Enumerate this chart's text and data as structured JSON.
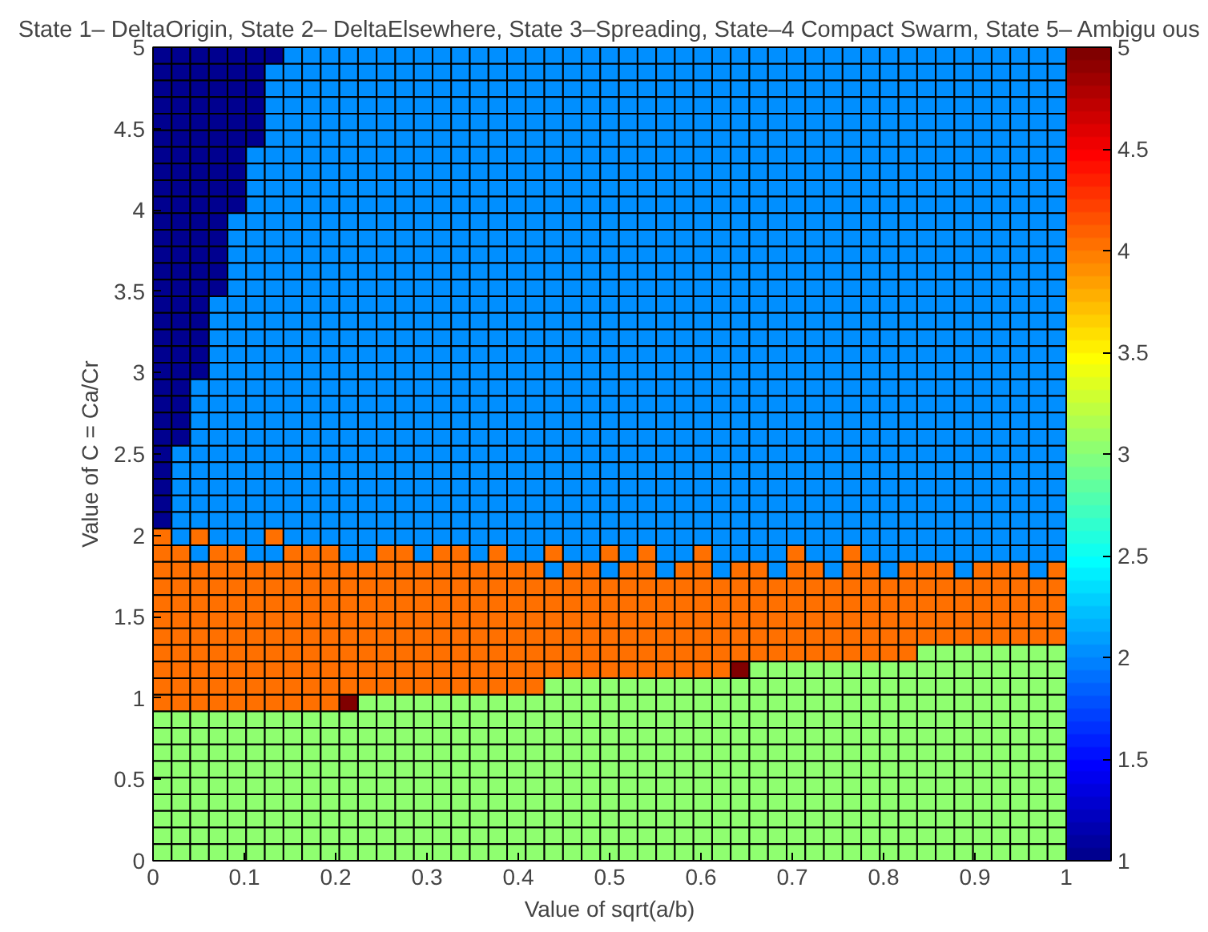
{
  "chart_data": {
    "type": "heatmap",
    "title": "State 1– DeltaOrigin, State 2– DeltaElsewhere, State 3–Spreading, State–4 Compact Swarm, State 5– Ambigu ous",
    "xlabel": "Value of sqrt(a/b)",
    "ylabel": "Value of C = Ca/Cr",
    "xlim": [
      0,
      1
    ],
    "ylim": [
      0,
      5
    ],
    "xticks": [
      0,
      0.1,
      0.2,
      0.3,
      0.4,
      0.5,
      0.6,
      0.7,
      0.8,
      0.9,
      1
    ],
    "yticks": [
      0,
      0.5,
      1,
      1.5,
      2,
      2.5,
      3,
      3.5,
      4,
      4.5,
      5
    ],
    "clim": [
      1,
      5
    ],
    "cticks": [
      1,
      1.5,
      2,
      2.5,
      3,
      3.5,
      4,
      4.5,
      5
    ],
    "cells": [
      [
        1,
        1,
        1,
        1,
        1,
        1,
        1,
        2,
        2,
        2,
        2,
        2,
        2,
        2,
        2,
        2,
        2,
        2,
        2,
        2,
        2,
        2,
        2,
        2,
        2,
        2,
        2,
        2,
        2,
        2,
        2,
        2,
        2,
        2,
        2,
        2,
        2,
        2,
        2,
        2,
        2,
        2,
        2,
        2,
        2,
        2,
        2,
        2,
        2
      ],
      [
        1,
        1,
        1,
        1,
        1,
        1,
        2,
        2,
        2,
        2,
        2,
        2,
        2,
        2,
        2,
        2,
        2,
        2,
        2,
        2,
        2,
        2,
        2,
        2,
        2,
        2,
        2,
        2,
        2,
        2,
        2,
        2,
        2,
        2,
        2,
        2,
        2,
        2,
        2,
        2,
        2,
        2,
        2,
        2,
        2,
        2,
        2,
        2,
        2
      ],
      [
        1,
        1,
        1,
        1,
        1,
        1,
        2,
        2,
        2,
        2,
        2,
        2,
        2,
        2,
        2,
        2,
        2,
        2,
        2,
        2,
        2,
        2,
        2,
        2,
        2,
        2,
        2,
        2,
        2,
        2,
        2,
        2,
        2,
        2,
        2,
        2,
        2,
        2,
        2,
        2,
        2,
        2,
        2,
        2,
        2,
        2,
        2,
        2,
        2
      ],
      [
        1,
        1,
        1,
        1,
        1,
        1,
        2,
        2,
        2,
        2,
        2,
        2,
        2,
        2,
        2,
        2,
        2,
        2,
        2,
        2,
        2,
        2,
        2,
        2,
        2,
        2,
        2,
        2,
        2,
        2,
        2,
        2,
        2,
        2,
        2,
        2,
        2,
        2,
        2,
        2,
        2,
        2,
        2,
        2,
        2,
        2,
        2,
        2,
        2
      ],
      [
        1,
        1,
        1,
        1,
        1,
        1,
        2,
        2,
        2,
        2,
        2,
        2,
        2,
        2,
        2,
        2,
        2,
        2,
        2,
        2,
        2,
        2,
        2,
        2,
        2,
        2,
        2,
        2,
        2,
        2,
        2,
        2,
        2,
        2,
        2,
        2,
        2,
        2,
        2,
        2,
        2,
        2,
        2,
        2,
        2,
        2,
        2,
        2,
        2
      ],
      [
        1,
        1,
        1,
        1,
        1,
        1,
        2,
        2,
        2,
        2,
        2,
        2,
        2,
        2,
        2,
        2,
        2,
        2,
        2,
        2,
        2,
        2,
        2,
        2,
        2,
        2,
        2,
        2,
        2,
        2,
        2,
        2,
        2,
        2,
        2,
        2,
        2,
        2,
        2,
        2,
        2,
        2,
        2,
        2,
        2,
        2,
        2,
        2,
        2
      ],
      [
        1,
        1,
        1,
        1,
        1,
        2,
        2,
        2,
        2,
        2,
        2,
        2,
        2,
        2,
        2,
        2,
        2,
        2,
        2,
        2,
        2,
        2,
        2,
        2,
        2,
        2,
        2,
        2,
        2,
        2,
        2,
        2,
        2,
        2,
        2,
        2,
        2,
        2,
        2,
        2,
        2,
        2,
        2,
        2,
        2,
        2,
        2,
        2,
        2
      ],
      [
        1,
        1,
        1,
        1,
        1,
        2,
        2,
        2,
        2,
        2,
        2,
        2,
        2,
        2,
        2,
        2,
        2,
        2,
        2,
        2,
        2,
        2,
        2,
        2,
        2,
        2,
        2,
        2,
        2,
        2,
        2,
        2,
        2,
        2,
        2,
        2,
        2,
        2,
        2,
        2,
        2,
        2,
        2,
        2,
        2,
        2,
        2,
        2,
        2
      ],
      [
        1,
        1,
        1,
        1,
        1,
        2,
        2,
        2,
        2,
        2,
        2,
        2,
        2,
        2,
        2,
        2,
        2,
        2,
        2,
        2,
        2,
        2,
        2,
        2,
        2,
        2,
        2,
        2,
        2,
        2,
        2,
        2,
        2,
        2,
        2,
        2,
        2,
        2,
        2,
        2,
        2,
        2,
        2,
        2,
        2,
        2,
        2,
        2,
        2
      ],
      [
        1,
        1,
        1,
        1,
        1,
        2,
        2,
        2,
        2,
        2,
        2,
        2,
        2,
        2,
        2,
        2,
        2,
        2,
        2,
        2,
        2,
        2,
        2,
        2,
        2,
        2,
        2,
        2,
        2,
        2,
        2,
        2,
        2,
        2,
        2,
        2,
        2,
        2,
        2,
        2,
        2,
        2,
        2,
        2,
        2,
        2,
        2,
        2,
        2
      ],
      [
        1,
        1,
        1,
        1,
        2,
        2,
        2,
        2,
        2,
        2,
        2,
        2,
        2,
        2,
        2,
        2,
        2,
        2,
        2,
        2,
        2,
        2,
        2,
        2,
        2,
        2,
        2,
        2,
        2,
        2,
        2,
        2,
        2,
        2,
        2,
        2,
        2,
        2,
        2,
        2,
        2,
        2,
        2,
        2,
        2,
        2,
        2,
        2,
        2
      ],
      [
        1,
        1,
        1,
        1,
        2,
        2,
        2,
        2,
        2,
        2,
        2,
        2,
        2,
        2,
        2,
        2,
        2,
        2,
        2,
        2,
        2,
        2,
        2,
        2,
        2,
        2,
        2,
        2,
        2,
        2,
        2,
        2,
        2,
        2,
        2,
        2,
        2,
        2,
        2,
        2,
        2,
        2,
        2,
        2,
        2,
        2,
        2,
        2,
        2
      ],
      [
        1,
        1,
        1,
        1,
        2,
        2,
        2,
        2,
        2,
        2,
        2,
        2,
        2,
        2,
        2,
        2,
        2,
        2,
        2,
        2,
        2,
        2,
        2,
        2,
        2,
        2,
        2,
        2,
        2,
        2,
        2,
        2,
        2,
        2,
        2,
        2,
        2,
        2,
        2,
        2,
        2,
        2,
        2,
        2,
        2,
        2,
        2,
        2,
        2
      ],
      [
        1,
        1,
        1,
        1,
        2,
        2,
        2,
        2,
        2,
        2,
        2,
        2,
        2,
        2,
        2,
        2,
        2,
        2,
        2,
        2,
        2,
        2,
        2,
        2,
        2,
        2,
        2,
        2,
        2,
        2,
        2,
        2,
        2,
        2,
        2,
        2,
        2,
        2,
        2,
        2,
        2,
        2,
        2,
        2,
        2,
        2,
        2,
        2,
        2
      ],
      [
        1,
        1,
        1,
        1,
        2,
        2,
        2,
        2,
        2,
        2,
        2,
        2,
        2,
        2,
        2,
        2,
        2,
        2,
        2,
        2,
        2,
        2,
        2,
        2,
        2,
        2,
        2,
        2,
        2,
        2,
        2,
        2,
        2,
        2,
        2,
        2,
        2,
        2,
        2,
        2,
        2,
        2,
        2,
        2,
        2,
        2,
        2,
        2,
        2
      ],
      [
        1,
        1,
        1,
        2,
        2,
        2,
        2,
        2,
        2,
        2,
        2,
        2,
        2,
        2,
        2,
        2,
        2,
        2,
        2,
        2,
        2,
        2,
        2,
        2,
        2,
        2,
        2,
        2,
        2,
        2,
        2,
        2,
        2,
        2,
        2,
        2,
        2,
        2,
        2,
        2,
        2,
        2,
        2,
        2,
        2,
        2,
        2,
        2,
        2
      ],
      [
        1,
        1,
        1,
        2,
        2,
        2,
        2,
        2,
        2,
        2,
        2,
        2,
        2,
        2,
        2,
        2,
        2,
        2,
        2,
        2,
        2,
        2,
        2,
        2,
        2,
        2,
        2,
        2,
        2,
        2,
        2,
        2,
        2,
        2,
        2,
        2,
        2,
        2,
        2,
        2,
        2,
        2,
        2,
        2,
        2,
        2,
        2,
        2,
        2
      ],
      [
        1,
        1,
        1,
        2,
        2,
        2,
        2,
        2,
        2,
        2,
        2,
        2,
        2,
        2,
        2,
        2,
        2,
        2,
        2,
        2,
        2,
        2,
        2,
        2,
        2,
        2,
        2,
        2,
        2,
        2,
        2,
        2,
        2,
        2,
        2,
        2,
        2,
        2,
        2,
        2,
        2,
        2,
        2,
        2,
        2,
        2,
        2,
        2,
        2
      ],
      [
        1,
        1,
        1,
        2,
        2,
        2,
        2,
        2,
        2,
        2,
        2,
        2,
        2,
        2,
        2,
        2,
        2,
        2,
        2,
        2,
        2,
        2,
        2,
        2,
        2,
        2,
        2,
        2,
        2,
        2,
        2,
        2,
        2,
        2,
        2,
        2,
        2,
        2,
        2,
        2,
        2,
        2,
        2,
        2,
        2,
        2,
        2,
        2,
        2
      ],
      [
        1,
        1,
        1,
        2,
        2,
        2,
        2,
        2,
        2,
        2,
        2,
        2,
        2,
        2,
        2,
        2,
        2,
        2,
        2,
        2,
        2,
        2,
        2,
        2,
        2,
        2,
        2,
        2,
        2,
        2,
        2,
        2,
        2,
        2,
        2,
        2,
        2,
        2,
        2,
        2,
        2,
        2,
        2,
        2,
        2,
        2,
        2,
        2,
        2
      ],
      [
        1,
        1,
        2,
        2,
        2,
        2,
        2,
        2,
        2,
        2,
        2,
        2,
        2,
        2,
        2,
        2,
        2,
        2,
        2,
        2,
        2,
        2,
        2,
        2,
        2,
        2,
        2,
        2,
        2,
        2,
        2,
        2,
        2,
        2,
        2,
        2,
        2,
        2,
        2,
        2,
        2,
        2,
        2,
        2,
        2,
        2,
        2,
        2,
        2
      ],
      [
        1,
        1,
        2,
        2,
        2,
        2,
        2,
        2,
        2,
        2,
        2,
        2,
        2,
        2,
        2,
        2,
        2,
        2,
        2,
        2,
        2,
        2,
        2,
        2,
        2,
        2,
        2,
        2,
        2,
        2,
        2,
        2,
        2,
        2,
        2,
        2,
        2,
        2,
        2,
        2,
        2,
        2,
        2,
        2,
        2,
        2,
        2,
        2,
        2
      ],
      [
        1,
        1,
        2,
        2,
        2,
        2,
        2,
        2,
        2,
        2,
        2,
        2,
        2,
        2,
        2,
        2,
        2,
        2,
        2,
        2,
        2,
        2,
        2,
        2,
        2,
        2,
        2,
        2,
        2,
        2,
        2,
        2,
        2,
        2,
        2,
        2,
        2,
        2,
        2,
        2,
        2,
        2,
        2,
        2,
        2,
        2,
        2,
        2,
        2
      ],
      [
        1,
        1,
        2,
        2,
        2,
        2,
        2,
        2,
        2,
        2,
        2,
        2,
        2,
        2,
        2,
        2,
        2,
        2,
        2,
        2,
        2,
        2,
        2,
        2,
        2,
        2,
        2,
        2,
        2,
        2,
        2,
        2,
        2,
        2,
        2,
        2,
        2,
        2,
        2,
        2,
        2,
        2,
        2,
        2,
        2,
        2,
        2,
        2,
        2
      ],
      [
        1,
        2,
        2,
        2,
        2,
        2,
        2,
        2,
        2,
        2,
        2,
        2,
        2,
        2,
        2,
        2,
        2,
        2,
        2,
        2,
        2,
        2,
        2,
        2,
        2,
        2,
        2,
        2,
        2,
        2,
        2,
        2,
        2,
        2,
        2,
        2,
        2,
        2,
        2,
        2,
        2,
        2,
        2,
        2,
        2,
        2,
        2,
        2,
        2
      ],
      [
        1,
        2,
        2,
        2,
        2,
        2,
        2,
        2,
        2,
        2,
        2,
        2,
        2,
        2,
        2,
        2,
        2,
        2,
        2,
        2,
        2,
        2,
        2,
        2,
        2,
        2,
        2,
        2,
        2,
        2,
        2,
        2,
        2,
        2,
        2,
        2,
        2,
        2,
        2,
        2,
        2,
        2,
        2,
        2,
        2,
        2,
        2,
        2,
        2
      ],
      [
        1,
        2,
        2,
        2,
        2,
        2,
        2,
        2,
        2,
        2,
        2,
        2,
        2,
        2,
        2,
        2,
        2,
        2,
        2,
        2,
        2,
        2,
        2,
        2,
        2,
        2,
        2,
        2,
        2,
        2,
        2,
        2,
        2,
        2,
        2,
        2,
        2,
        2,
        2,
        2,
        2,
        2,
        2,
        2,
        2,
        2,
        2,
        2,
        2
      ],
      [
        1,
        2,
        2,
        2,
        2,
        2,
        2,
        2,
        2,
        2,
        2,
        2,
        2,
        2,
        2,
        2,
        2,
        2,
        2,
        2,
        2,
        2,
        2,
        2,
        2,
        2,
        2,
        2,
        2,
        2,
        2,
        2,
        2,
        2,
        2,
        2,
        2,
        2,
        2,
        2,
        2,
        2,
        2,
        2,
        2,
        2,
        2,
        2,
        2
      ],
      [
        1,
        2,
        2,
        2,
        2,
        2,
        2,
        2,
        2,
        2,
        2,
        2,
        2,
        2,
        2,
        2,
        2,
        2,
        2,
        2,
        2,
        2,
        2,
        2,
        2,
        2,
        2,
        2,
        2,
        2,
        2,
        2,
        2,
        2,
        2,
        2,
        2,
        2,
        2,
        2,
        2,
        2,
        2,
        2,
        2,
        2,
        2,
        2,
        2
      ],
      [
        4,
        2,
        4,
        2,
        2,
        2,
        4,
        2,
        2,
        2,
        2,
        2,
        2,
        2,
        2,
        2,
        2,
        2,
        2,
        2,
        2,
        2,
        2,
        2,
        2,
        2,
        2,
        2,
        2,
        2,
        2,
        2,
        2,
        2,
        2,
        2,
        2,
        2,
        2,
        2,
        2,
        2,
        2,
        2,
        2,
        2,
        2,
        2,
        2
      ],
      [
        4,
        4,
        2,
        4,
        4,
        2,
        2,
        4,
        4,
        4,
        2,
        2,
        4,
        4,
        2,
        4,
        4,
        2,
        4,
        2,
        2,
        4,
        2,
        2,
        4,
        2,
        4,
        2,
        2,
        4,
        2,
        2,
        2,
        2,
        4,
        2,
        2,
        4,
        2,
        2,
        2,
        2,
        2,
        2,
        2,
        2,
        2,
        2,
        2
      ],
      [
        4,
        4,
        4,
        4,
        4,
        4,
        4,
        4,
        4,
        4,
        4,
        4,
        4,
        4,
        4,
        4,
        4,
        4,
        4,
        4,
        4,
        2,
        4,
        4,
        2,
        4,
        4,
        2,
        4,
        4,
        2,
        4,
        4,
        2,
        4,
        4,
        2,
        4,
        4,
        2,
        4,
        4,
        4,
        2,
        4,
        4,
        4,
        2,
        4
      ],
      [
        4,
        4,
        4,
        4,
        4,
        4,
        4,
        4,
        4,
        4,
        4,
        4,
        4,
        4,
        4,
        4,
        4,
        4,
        4,
        4,
        4,
        4,
        4,
        4,
        4,
        4,
        4,
        4,
        4,
        4,
        4,
        4,
        4,
        4,
        4,
        4,
        4,
        4,
        4,
        4,
        4,
        4,
        4,
        4,
        4,
        4,
        4,
        4,
        4
      ],
      [
        4,
        4,
        4,
        4,
        4,
        4,
        4,
        4,
        4,
        4,
        4,
        4,
        4,
        4,
        4,
        4,
        4,
        4,
        4,
        4,
        4,
        4,
        4,
        4,
        4,
        4,
        4,
        4,
        4,
        4,
        4,
        4,
        4,
        4,
        4,
        4,
        4,
        4,
        4,
        4,
        4,
        4,
        4,
        4,
        4,
        4,
        4,
        4,
        4
      ],
      [
        4,
        4,
        4,
        4,
        4,
        4,
        4,
        4,
        4,
        4,
        4,
        4,
        4,
        4,
        4,
        4,
        4,
        4,
        4,
        4,
        4,
        4,
        4,
        4,
        4,
        4,
        4,
        4,
        4,
        4,
        4,
        4,
        4,
        4,
        4,
        4,
        4,
        4,
        4,
        4,
        4,
        4,
        4,
        4,
        4,
        4,
        4,
        4,
        4
      ],
      [
        4,
        4,
        4,
        4,
        4,
        4,
        4,
        4,
        4,
        4,
        4,
        4,
        4,
        4,
        4,
        4,
        4,
        4,
        4,
        4,
        4,
        4,
        4,
        4,
        4,
        4,
        4,
        4,
        4,
        4,
        4,
        4,
        4,
        4,
        4,
        4,
        4,
        4,
        4,
        4,
        4,
        4,
        4,
        4,
        4,
        4,
        4,
        4,
        4
      ],
      [
        4,
        4,
        4,
        4,
        4,
        4,
        4,
        4,
        4,
        4,
        4,
        4,
        4,
        4,
        4,
        4,
        4,
        4,
        4,
        4,
        4,
        4,
        4,
        4,
        4,
        4,
        4,
        4,
        4,
        4,
        4,
        4,
        4,
        4,
        4,
        4,
        4,
        4,
        4,
        4,
        4,
        3,
        3,
        3,
        3,
        3,
        3,
        3,
        3
      ],
      [
        4,
        4,
        4,
        4,
        4,
        4,
        4,
        4,
        4,
        4,
        4,
        4,
        4,
        4,
        4,
        4,
        4,
        4,
        4,
        4,
        4,
        4,
        4,
        4,
        4,
        4,
        4,
        4,
        4,
        4,
        4,
        5,
        3,
        3,
        3,
        3,
        3,
        3,
        3,
        3,
        3,
        3,
        3,
        3,
        3,
        3,
        3,
        3,
        3
      ],
      [
        4,
        4,
        4,
        4,
        4,
        4,
        4,
        4,
        4,
        4,
        4,
        4,
        4,
        4,
        4,
        4,
        4,
        4,
        4,
        4,
        4,
        3,
        3,
        3,
        3,
        3,
        3,
        3,
        3,
        3,
        3,
        3,
        3,
        3,
        3,
        3,
        3,
        3,
        3,
        3,
        3,
        3,
        3,
        3,
        3,
        3,
        3,
        3,
        3
      ],
      [
        4,
        4,
        4,
        4,
        4,
        4,
        4,
        4,
        4,
        4,
        5,
        3,
        3,
        3,
        3,
        3,
        3,
        3,
        3,
        3,
        3,
        3,
        3,
        3,
        3,
        3,
        3,
        3,
        3,
        3,
        3,
        3,
        3,
        3,
        3,
        3,
        3,
        3,
        3,
        3,
        3,
        3,
        3,
        3,
        3,
        3,
        3,
        3,
        3
      ],
      [
        3,
        3,
        3,
        3,
        3,
        3,
        3,
        3,
        3,
        3,
        3,
        3,
        3,
        3,
        3,
        3,
        3,
        3,
        3,
        3,
        3,
        3,
        3,
        3,
        3,
        3,
        3,
        3,
        3,
        3,
        3,
        3,
        3,
        3,
        3,
        3,
        3,
        3,
        3,
        3,
        3,
        3,
        3,
        3,
        3,
        3,
        3,
        3,
        3
      ],
      [
        3,
        3,
        3,
        3,
        3,
        3,
        3,
        3,
        3,
        3,
        3,
        3,
        3,
        3,
        3,
        3,
        3,
        3,
        3,
        3,
        3,
        3,
        3,
        3,
        3,
        3,
        3,
        3,
        3,
        3,
        3,
        3,
        3,
        3,
        3,
        3,
        3,
        3,
        3,
        3,
        3,
        3,
        3,
        3,
        3,
        3,
        3,
        3,
        3
      ],
      [
        3,
        3,
        3,
        3,
        3,
        3,
        3,
        3,
        3,
        3,
        3,
        3,
        3,
        3,
        3,
        3,
        3,
        3,
        3,
        3,
        3,
        3,
        3,
        3,
        3,
        3,
        3,
        3,
        3,
        3,
        3,
        3,
        3,
        3,
        3,
        3,
        3,
        3,
        3,
        3,
        3,
        3,
        3,
        3,
        3,
        3,
        3,
        3,
        3
      ],
      [
        3,
        3,
        3,
        3,
        3,
        3,
        3,
        3,
        3,
        3,
        3,
        3,
        3,
        3,
        3,
        3,
        3,
        3,
        3,
        3,
        3,
        3,
        3,
        3,
        3,
        3,
        3,
        3,
        3,
        3,
        3,
        3,
        3,
        3,
        3,
        3,
        3,
        3,
        3,
        3,
        3,
        3,
        3,
        3,
        3,
        3,
        3,
        3,
        3
      ],
      [
        3,
        3,
        3,
        3,
        3,
        3,
        3,
        3,
        3,
        3,
        3,
        3,
        3,
        3,
        3,
        3,
        3,
        3,
        3,
        3,
        3,
        3,
        3,
        3,
        3,
        3,
        3,
        3,
        3,
        3,
        3,
        3,
        3,
        3,
        3,
        3,
        3,
        3,
        3,
        3,
        3,
        3,
        3,
        3,
        3,
        3,
        3,
        3,
        3
      ],
      [
        3,
        3,
        3,
        3,
        3,
        3,
        3,
        3,
        3,
        3,
        3,
        3,
        3,
        3,
        3,
        3,
        3,
        3,
        3,
        3,
        3,
        3,
        3,
        3,
        3,
        3,
        3,
        3,
        3,
        3,
        3,
        3,
        3,
        3,
        3,
        3,
        3,
        3,
        3,
        3,
        3,
        3,
        3,
        3,
        3,
        3,
        3,
        3,
        3
      ],
      [
        3,
        3,
        3,
        3,
        3,
        3,
        3,
        3,
        3,
        3,
        3,
        3,
        3,
        3,
        3,
        3,
        3,
        3,
        3,
        3,
        3,
        3,
        3,
        3,
        3,
        3,
        3,
        3,
        3,
        3,
        3,
        3,
        3,
        3,
        3,
        3,
        3,
        3,
        3,
        3,
        3,
        3,
        3,
        3,
        3,
        3,
        3,
        3,
        3
      ],
      [
        3,
        3,
        3,
        3,
        3,
        3,
        3,
        3,
        3,
        3,
        3,
        3,
        3,
        3,
        3,
        3,
        3,
        3,
        3,
        3,
        3,
        3,
        3,
        3,
        3,
        3,
        3,
        3,
        3,
        3,
        3,
        3,
        3,
        3,
        3,
        3,
        3,
        3,
        3,
        3,
        3,
        3,
        3,
        3,
        3,
        3,
        3,
        3,
        3
      ],
      [
        3,
        3,
        3,
        3,
        3,
        3,
        3,
        3,
        3,
        3,
        3,
        3,
        3,
        3,
        3,
        3,
        3,
        3,
        3,
        3,
        3,
        3,
        3,
        3,
        3,
        3,
        3,
        3,
        3,
        3,
        3,
        3,
        3,
        3,
        3,
        3,
        3,
        3,
        3,
        3,
        3,
        3,
        3,
        3,
        3,
        3,
        3,
        3,
        3
      ]
    ]
  }
}
